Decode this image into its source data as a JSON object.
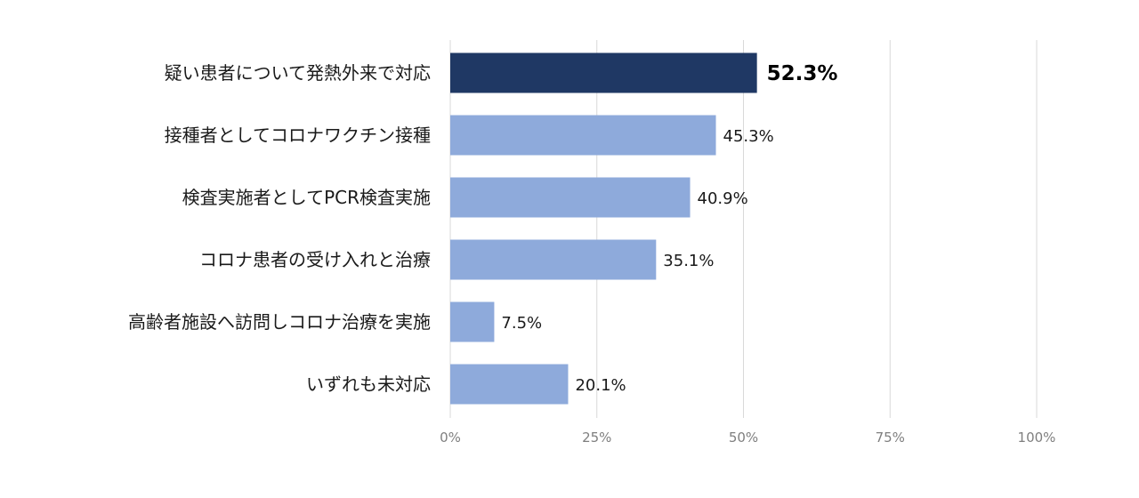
{
  "chart_data": {
    "type": "bar",
    "orientation": "horizontal",
    "categories": [
      "疑い患者について発熱外来で対応",
      "接種者としてコロナワクチン接種",
      "検査実施者としてPCR検査実施",
      "コロナ患者の受け入れと治療",
      "高齢者施設へ訪問しコロナ治療を実施",
      "いずれも未対応"
    ],
    "values": [
      52.3,
      45.3,
      40.9,
      35.1,
      7.5,
      20.1
    ],
    "value_labels": [
      "52.3%",
      "45.3%",
      "40.9%",
      "35.1%",
      "7.5%",
      "20.1%"
    ],
    "highlight_index": 0,
    "xlim": [
      0,
      100
    ],
    "x_ticks": [
      0,
      25,
      50,
      75,
      100
    ],
    "x_tick_labels": [
      "0%",
      "25%",
      "50%",
      "75%",
      "100%"
    ],
    "grid": true,
    "title": "",
    "xlabel": "",
    "ylabel": "",
    "colors": {
      "highlight_bar": "#1f3864",
      "bar": "#8eaadb",
      "grid": "#d9d9d9"
    }
  }
}
